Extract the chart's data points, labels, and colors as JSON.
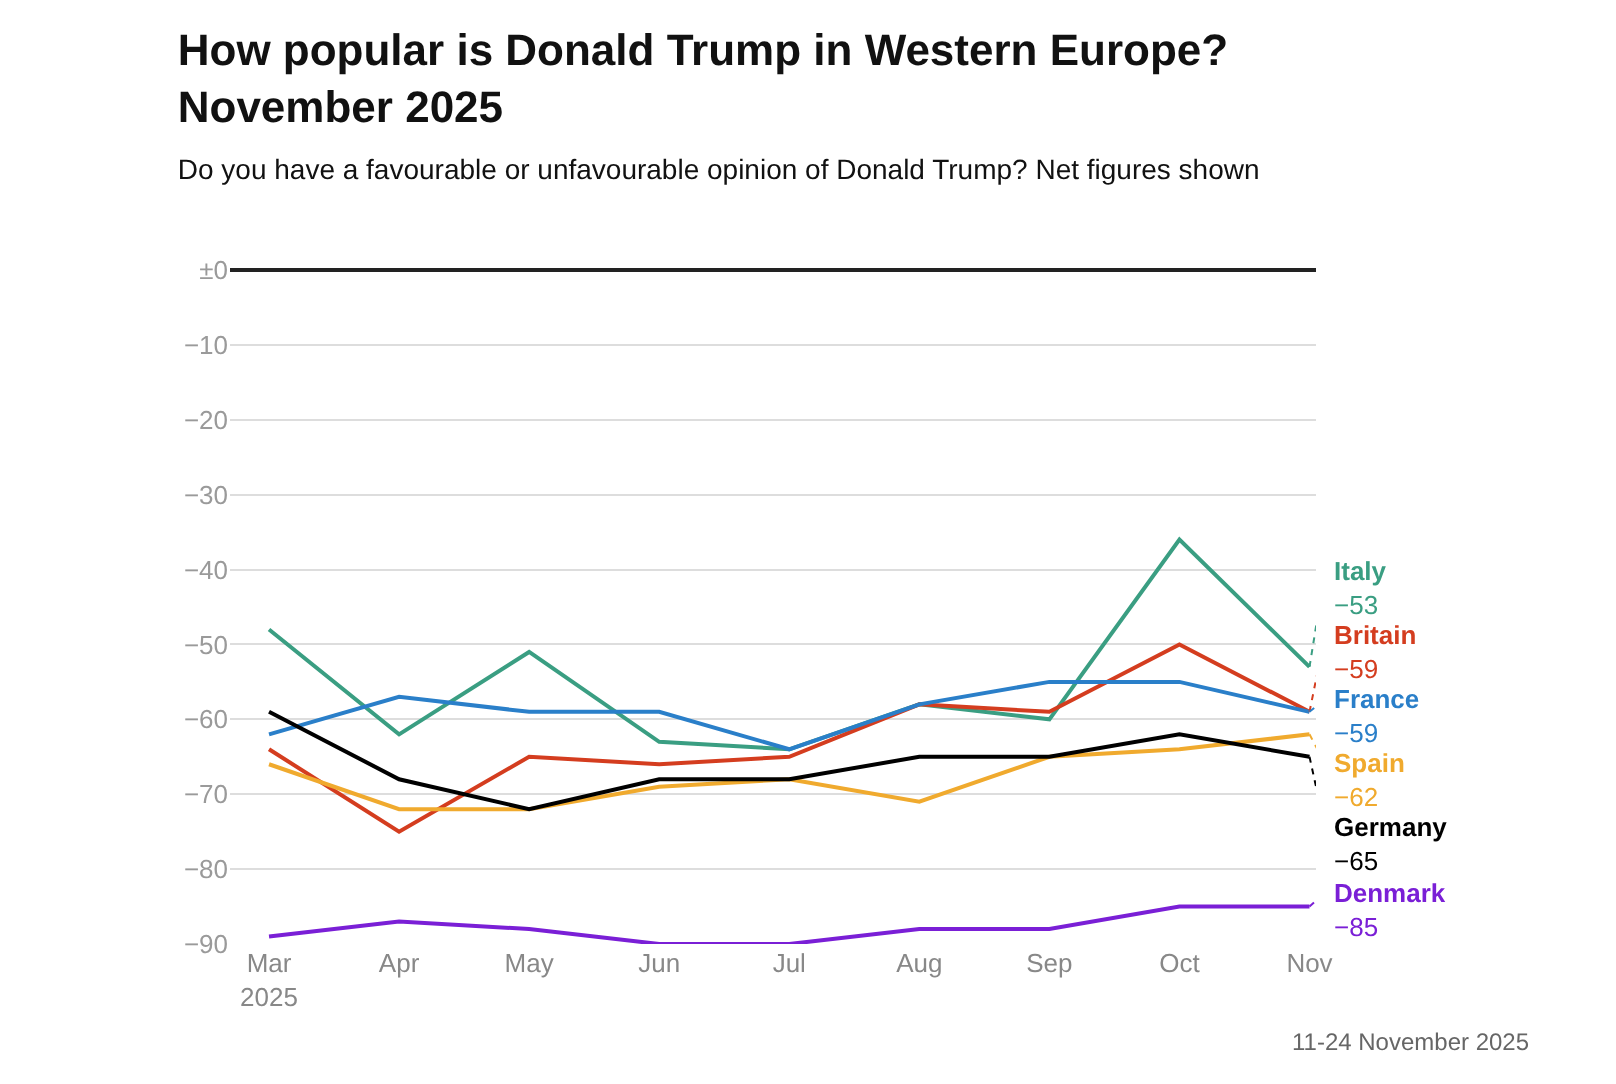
{
  "chart_data": {
    "type": "line",
    "title": "How popular is Donald Trump in Western Europe?\nNovember 2025",
    "subtitle": "Do you have a favourable or unfavourable opinion of Donald Trump? Net figures shown",
    "categories": [
      "Mar\n2025",
      "Apr",
      "May",
      "Jun",
      "Jul",
      "Aug",
      "Sep",
      "Oct",
      "Nov"
    ],
    "series": [
      {
        "name": "Italy",
        "color": "#3a9e82",
        "values": [
          -48,
          -62,
          -51,
          -63,
          -64,
          -58,
          -60,
          -36,
          -53
        ],
        "value_labels": [
          null,
          null,
          null,
          null,
          null,
          null,
          null,
          null,
          "−53"
        ]
      },
      {
        "name": "Britain",
        "color": "#d43d1f",
        "values": [
          -64,
          -75,
          -65,
          -66,
          -65,
          -58,
          -59,
          -50,
          -59
        ],
        "value_labels": [
          null,
          null,
          null,
          null,
          null,
          null,
          null,
          null,
          "−59"
        ]
      },
      {
        "name": "France",
        "color": "#2a7fc9",
        "values": [
          -62,
          -57,
          -59,
          -59,
          -64,
          -58,
          -55,
          -55,
          -59
        ],
        "value_labels": [
          null,
          null,
          null,
          null,
          null,
          null,
          null,
          null,
          "−59"
        ]
      },
      {
        "name": "Spain",
        "color": "#f0aa2e",
        "values": [
          -66,
          -72,
          -72,
          -69,
          -68,
          -71,
          -65,
          -64,
          -62
        ],
        "value_labels": [
          null,
          null,
          null,
          null,
          null,
          null,
          null,
          null,
          "−62"
        ]
      },
      {
        "name": "Germany",
        "color": "#000000",
        "values": [
          -59,
          -68,
          -72,
          -68,
          -68,
          -65,
          -65,
          -62,
          -65
        ],
        "value_labels": [
          null,
          null,
          null,
          null,
          null,
          null,
          null,
          null,
          "−65"
        ]
      },
      {
        "name": "Denmark",
        "color": "#7a1fd6",
        "values": [
          -89,
          -87,
          -88,
          -90,
          -90,
          -88,
          -88,
          -85,
          -85
        ],
        "value_labels": [
          null,
          null,
          null,
          null,
          null,
          null,
          null,
          null,
          "−85"
        ]
      }
    ],
    "ylim": [
      -90,
      0
    ],
    "yticks": [
      {
        "value": 0,
        "label": "±0"
      },
      {
        "value": -10,
        "label": "−10"
      },
      {
        "value": -20,
        "label": "−20"
      },
      {
        "value": -30,
        "label": "−30"
      },
      {
        "value": -40,
        "label": "−40"
      },
      {
        "value": -50,
        "label": "−50"
      },
      {
        "value": -60,
        "label": "−60"
      },
      {
        "value": -70,
        "label": "−70"
      },
      {
        "value": -80,
        "label": "−80"
      },
      {
        "value": -90,
        "label": "−90"
      }
    ],
    "grid": "y",
    "legend": false,
    "marker": "none",
    "line_style": "solid",
    "annotations": [
      "11-24 November 2025"
    ]
  }
}
